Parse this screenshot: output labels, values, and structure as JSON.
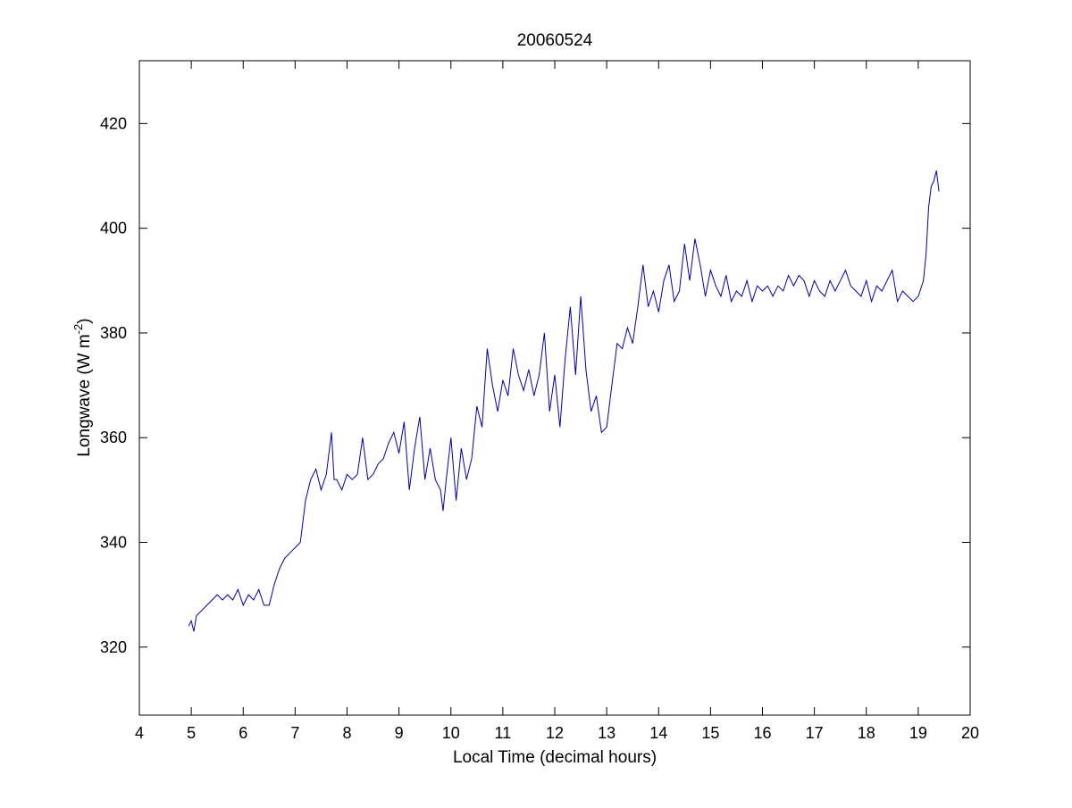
{
  "chart_data": {
    "type": "line",
    "title": "20060524",
    "xlabel": "Local Time (decimal hours)",
    "ylabel": {
      "main": "Longwave (W m",
      "superscript": "-2",
      "close": ")"
    },
    "xlim": [
      4,
      20
    ],
    "ylim": [
      307,
      432
    ],
    "xticks": [
      4,
      5,
      6,
      7,
      8,
      9,
      10,
      11,
      12,
      13,
      14,
      15,
      16,
      17,
      18,
      19,
      20
    ],
    "yticks": [
      320,
      340,
      360,
      380,
      400,
      420
    ],
    "grid": false,
    "line_color": "#0000aa",
    "series": [
      {
        "x": [
          4.95,
          5.0,
          5.05,
          5.1,
          5.2,
          5.3,
          5.4,
          5.5,
          5.6,
          5.7,
          5.8,
          5.9,
          6.0,
          6.1,
          6.2,
          6.3,
          6.4,
          6.5,
          6.55,
          6.6,
          6.7,
          6.8,
          6.9,
          7.0,
          7.1,
          7.2,
          7.3,
          7.4,
          7.5,
          7.6,
          7.7,
          7.75,
          7.8,
          7.9,
          8.0,
          8.1,
          8.2,
          8.3,
          8.4,
          8.5,
          8.6,
          8.7,
          8.8,
          8.9,
          9.0,
          9.1,
          9.2,
          9.3,
          9.4,
          9.5,
          9.6,
          9.7,
          9.8,
          9.85,
          9.9,
          10.0,
          10.1,
          10.2,
          10.3,
          10.4,
          10.5,
          10.6,
          10.7,
          10.8,
          10.9,
          11.0,
          11.1,
          11.2,
          11.3,
          11.4,
          11.5,
          11.6,
          11.7,
          11.8,
          11.9,
          12.0,
          12.1,
          12.2,
          12.3,
          12.4,
          12.5,
          12.6,
          12.7,
          12.8,
          12.9,
          13.0,
          13.1,
          13.2,
          13.3,
          13.4,
          13.5,
          13.6,
          13.7,
          13.8,
          13.9,
          14.0,
          14.1,
          14.2,
          14.3,
          14.4,
          14.5,
          14.6,
          14.7,
          14.8,
          14.9,
          15.0,
          15.1,
          15.2,
          15.3,
          15.4,
          15.5,
          15.6,
          15.7,
          15.8,
          15.9,
          16.0,
          16.1,
          16.2,
          16.3,
          16.4,
          16.5,
          16.6,
          16.7,
          16.8,
          16.9,
          17.0,
          17.1,
          17.2,
          17.3,
          17.4,
          17.5,
          17.6,
          17.7,
          17.8,
          17.9,
          18.0,
          18.1,
          18.2,
          18.3,
          18.4,
          18.5,
          18.6,
          18.7,
          18.8,
          18.9,
          19.0,
          19.1,
          19.15,
          19.2,
          19.25,
          19.3,
          19.35,
          19.4
        ],
        "y": [
          324,
          325,
          323,
          326,
          327,
          328,
          329,
          330,
          329,
          330,
          329,
          331,
          328,
          330,
          329,
          331,
          328,
          328,
          330,
          332,
          335,
          337,
          338,
          339,
          340,
          348,
          352,
          354,
          350,
          353,
          361,
          352,
          352,
          350,
          353,
          352,
          353,
          360,
          352,
          353,
          355,
          356,
          359,
          361,
          357,
          363,
          350,
          358,
          364,
          352,
          358,
          352,
          350,
          346,
          351,
          360,
          348,
          358,
          352,
          356,
          366,
          362,
          377,
          370,
          365,
          371,
          368,
          377,
          372,
          369,
          373,
          368,
          372,
          380,
          365,
          372,
          362,
          375,
          385,
          372,
          387,
          373,
          365,
          368,
          361,
          362,
          370,
          378,
          377,
          381,
          378,
          385,
          393,
          385,
          388,
          384,
          390,
          393,
          386,
          388,
          397,
          390,
          398,
          393,
          387,
          392,
          389,
          387,
          391,
          386,
          388,
          387,
          390,
          386,
          389,
          388,
          389,
          387,
          389,
          388,
          391,
          389,
          391,
          390,
          387,
          390,
          388,
          387,
          390,
          388,
          390,
          392,
          389,
          388,
          387,
          390,
          386,
          389,
          388,
          390,
          392,
          386,
          388,
          387,
          386,
          387,
          390,
          395,
          404,
          408,
          409,
          411,
          407
        ]
      }
    ]
  }
}
